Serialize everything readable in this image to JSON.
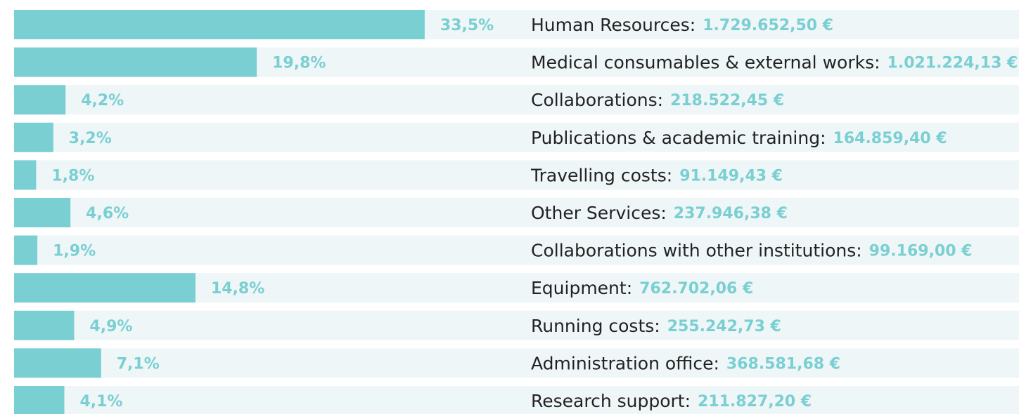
{
  "chart_data": {
    "type": "bar",
    "categories": [
      "Human Resources:",
      "Medical consumables & external works:",
      "Collaborations:",
      "Publications & academic training:",
      "Travelling costs:",
      "Other Services:",
      "Collaborations with other institutions:",
      "Equipment:",
      "Running costs:",
      "Administration office:",
      "Research support:"
    ],
    "values": [
      33.5,
      19.8,
      4.2,
      3.2,
      1.8,
      4.6,
      1.9,
      14.8,
      4.9,
      7.1,
      4.1
    ],
    "value_labels": [
      "33,5%",
      "19,8%",
      "4,2%",
      "3,2%",
      "1,8%",
      "4,6%",
      "1,9%",
      "14,8%",
      "4,9%",
      "7,1%",
      "4,1%"
    ],
    "amount_labels": [
      "1.729.652,50 €",
      "1.021.224,13 €",
      "218.522,45 €",
      "164.859,40 €",
      "91.149,43 €",
      "237.946,38 €",
      "99.169,00 €",
      "762.702,06 €",
      "255.242,73 €",
      "368.581,68 €",
      "211.827,20 €"
    ],
    "color": "#7acfd2"
  }
}
